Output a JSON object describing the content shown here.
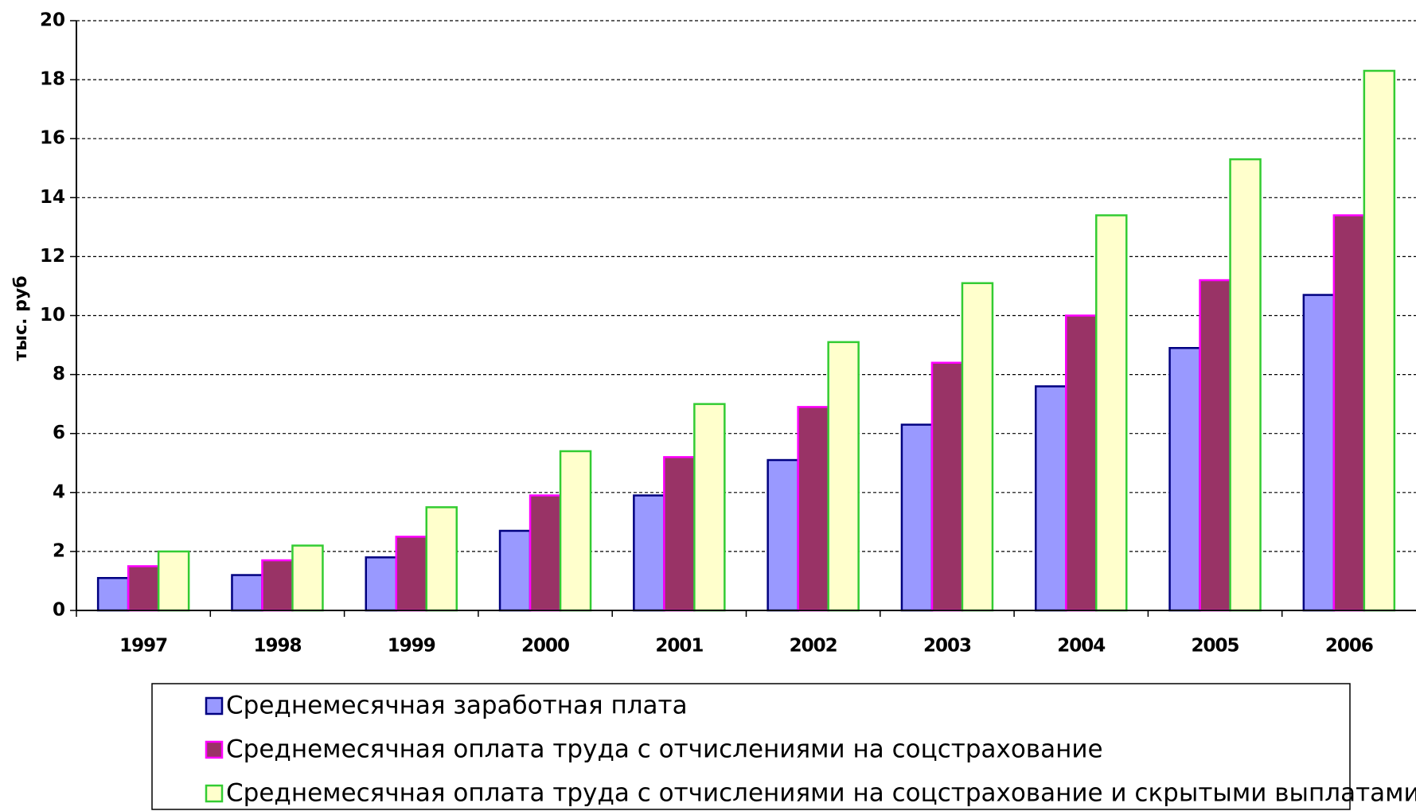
{
  "chart_data": {
    "type": "bar",
    "y_axis_label": "тыс. руб",
    "categories": [
      "1997",
      "1998",
      "1999",
      "2000",
      "2001",
      "2002",
      "2003",
      "2004",
      "2005",
      "2006"
    ],
    "series": [
      {
        "name": "Среднемесячная заработная плата",
        "color": "#9999ff",
        "stroke": "#000080",
        "values": [
          1.1,
          1.2,
          1.8,
          2.7,
          3.9,
          5.1,
          6.3,
          7.6,
          8.9,
          10.7
        ]
      },
      {
        "name": "Среднемесячная оплата труда с отчислениями на соцстрахование",
        "color": "#993366",
        "stroke": "#ff00ff",
        "values": [
          1.5,
          1.7,
          2.5,
          3.9,
          5.2,
          6.9,
          8.4,
          10.0,
          11.2,
          13.4
        ]
      },
      {
        "name": "Среднемесячная оплата труда с отчислениями на соцстрахование и скрытыми выплатами",
        "color": "#ffffcc",
        "stroke": "#33cc33",
        "values": [
          2.0,
          2.2,
          3.5,
          5.4,
          7.0,
          9.1,
          11.1,
          13.4,
          15.3,
          18.3
        ]
      }
    ],
    "ylim": [
      0,
      20
    ],
    "yticks": [
      0,
      2,
      4,
      6,
      8,
      10,
      12,
      14,
      16,
      18,
      20
    ],
    "grid": true
  }
}
